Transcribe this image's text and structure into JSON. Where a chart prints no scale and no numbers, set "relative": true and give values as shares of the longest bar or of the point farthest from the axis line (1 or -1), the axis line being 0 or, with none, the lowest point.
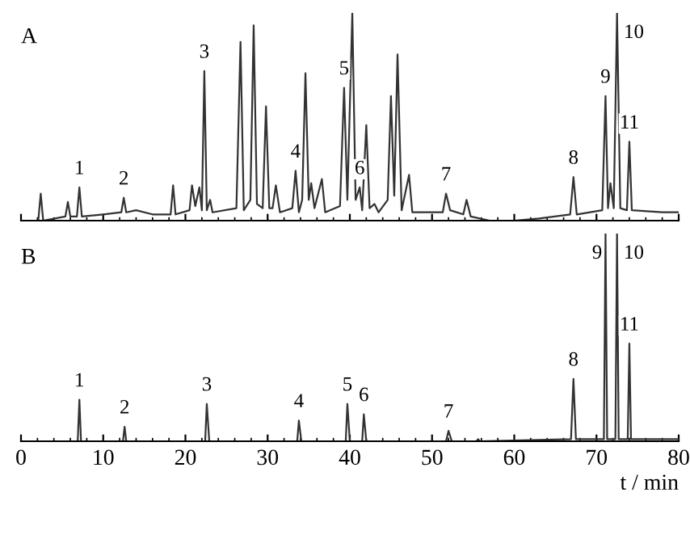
{
  "chart_data": [
    {
      "type": "line",
      "title": "A",
      "relative": true,
      "tick_labels": false,
      "xlim": [
        0,
        80
      ],
      "xticks": [
        0,
        10,
        20,
        30,
        40,
        50,
        60,
        70,
        80
      ],
      "series": [
        {
          "color": "#333333",
          "x": [
            0,
            2.1,
            2.4,
            2.7,
            5.4,
            5.7,
            6,
            6.8,
            7.1,
            7.4,
            10,
            12.2,
            12.5,
            12.8,
            14,
            16,
            18.2,
            18.5,
            18.8,
            20.5,
            20.8,
            21.2,
            21.7,
            22,
            22.3,
            22.6,
            23,
            23.3,
            26.2,
            26.7,
            27.1,
            27.9,
            28.3,
            28.7,
            29.4,
            29.8,
            30.2,
            30.6,
            31,
            31.5,
            33,
            33.4,
            33.8,
            34.2,
            34.6,
            35,
            35.3,
            35.7,
            36.6,
            37,
            38.8,
            39.3,
            39.7,
            40.3,
            40.7,
            41.2,
            41.5,
            42,
            42.4,
            43,
            43.5,
            44.6,
            45,
            45.4,
            45.8,
            46.3,
            47.2,
            47.6,
            51.3,
            51.7,
            52.2,
            53.8,
            54.2,
            54.7,
            57,
            60,
            63,
            66.8,
            67.2,
            67.6,
            70.7,
            71.1,
            71.4,
            71.7,
            72.1,
            72.5,
            72.9,
            73.7,
            74,
            74.3,
            78,
            80
          ],
          "values": [
            0,
            0,
            0.13,
            0,
            0.02,
            0.09,
            0.02,
            0.02,
            0.16,
            0.02,
            0.03,
            0.04,
            0.11,
            0.04,
            0.05,
            0.03,
            0.03,
            0.17,
            0.03,
            0.05,
            0.17,
            0.07,
            0.16,
            0.05,
            0.72,
            0.05,
            0.1,
            0.04,
            0.06,
            0.86,
            0.05,
            0.1,
            0.94,
            0.08,
            0.06,
            0.55,
            0.06,
            0.06,
            0.17,
            0.04,
            0.06,
            0.24,
            0.04,
            0.1,
            0.71,
            0.1,
            0.18,
            0.06,
            0.2,
            0.04,
            0.07,
            0.64,
            0.1,
            1.0,
            0.1,
            0.16,
            0.05,
            0.46,
            0.06,
            0.08,
            0.04,
            0.1,
            0.6,
            0.12,
            0.8,
            0.05,
            0.22,
            0.04,
            0.04,
            0.13,
            0.05,
            0.03,
            0.1,
            0.02,
            0,
            0,
            0.01,
            0.03,
            0.21,
            0.03,
            0.05,
            0.6,
            0.06,
            0.18,
            0.06,
            1.0,
            0.06,
            0.05,
            0.38,
            0.05,
            0.04,
            0.04
          ]
        }
      ],
      "annotations": [
        {
          "text": "1",
          "x": 7.1,
          "y": 0.16
        },
        {
          "text": "2",
          "x": 12.5,
          "y": 0.11
        },
        {
          "text": "3",
          "x": 22.3,
          "y": 0.72
        },
        {
          "text": "4",
          "x": 33.4,
          "y": 0.24
        },
        {
          "text": "5",
          "x": 39.3,
          "y": 0.64
        },
        {
          "text": "6",
          "x": 41.2,
          "y": 0.16
        },
        {
          "text": "7",
          "x": 51.7,
          "y": 0.13
        },
        {
          "text": "8",
          "x": 67.2,
          "y": 0.21
        },
        {
          "text": "9",
          "x": 71.1,
          "y": 0.6
        },
        {
          "text": "10",
          "x": 72.5,
          "y": 1.0
        },
        {
          "text": "11",
          "x": 74,
          "y": 0.38
        }
      ]
    },
    {
      "type": "line",
      "title": "B",
      "relative": true,
      "tick_labels": "x",
      "xlabel": "t / min",
      "xlim": [
        0,
        80
      ],
      "xticks": [
        0,
        10,
        20,
        30,
        40,
        50,
        60,
        70,
        80
      ],
      "series": [
        {
          "color": "#333333",
          "x": [
            0,
            6.9,
            7.1,
            7.3,
            12.4,
            12.6,
            12.8,
            22.4,
            22.6,
            22.9,
            33.6,
            33.8,
            34.1,
            39.5,
            39.7,
            40,
            41.5,
            41.7,
            42,
            51.7,
            52,
            52.4,
            55.4,
            55.6,
            55.8,
            66.9,
            67.2,
            67.5,
            70.9,
            71.1,
            71.3,
            72.3,
            72.5,
            72.7,
            73.8,
            74,
            74.2,
            80
          ],
          "values": [
            0,
            0,
            0.2,
            0,
            0,
            0.07,
            0,
            0,
            0.18,
            0,
            0,
            0.1,
            0,
            0,
            0.18,
            0,
            0,
            0.13,
            0,
            0,
            0.05,
            0,
            0,
            0.01,
            0,
            0.01,
            0.3,
            0.01,
            0.01,
            1.0,
            0.01,
            0.01,
            1.0,
            0.01,
            0.01,
            0.47,
            0.01,
            0.01
          ]
        }
      ],
      "annotations": [
        {
          "text": "1",
          "x": 7.1,
          "y": 0.2
        },
        {
          "text": "2",
          "x": 12.6,
          "y": 0.07
        },
        {
          "text": "3",
          "x": 22.6,
          "y": 0.18
        },
        {
          "text": "4",
          "x": 33.8,
          "y": 0.1
        },
        {
          "text": "5",
          "x": 39.7,
          "y": 0.18
        },
        {
          "text": "6",
          "x": 41.7,
          "y": 0.13
        },
        {
          "text": "7",
          "x": 52,
          "y": 0.05
        },
        {
          "text": "8",
          "x": 67.2,
          "y": 0.3
        },
        {
          "text": "9",
          "x": 71.1,
          "y": 1.0
        },
        {
          "text": "10",
          "x": 72.5,
          "y": 1.0
        },
        {
          "text": "11",
          "x": 74,
          "y": 0.47
        }
      ]
    }
  ]
}
